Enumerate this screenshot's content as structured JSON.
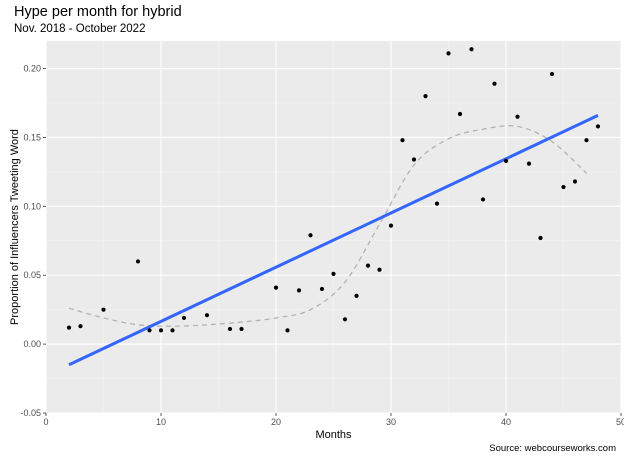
{
  "title": "Hype per month for hybrid",
  "subtitle": "Nov. 2018 - October 2022",
  "caption": "Source: webcourseworks.com",
  "chart_data": {
    "type": "scatter",
    "title": "Hype per month for hybrid",
    "subtitle": "Nov. 2018 - October 2022",
    "xlabel": "Months",
    "ylabel": "Proportion of Influencers Tweeting Word",
    "xlim": [
      0,
      50
    ],
    "ylim": [
      -0.05,
      0.22
    ],
    "x_ticks": [
      0,
      10,
      20,
      30,
      40,
      50
    ],
    "y_ticks": [
      -0.05,
      0.0,
      0.05,
      0.1,
      0.15,
      0.2
    ],
    "x_tick_labels": [
      "0",
      "10",
      "20",
      "30",
      "40",
      "50"
    ],
    "y_tick_labels": [
      "-0.05",
      "0.00",
      "0.05",
      "0.10",
      "0.15",
      "0.20"
    ],
    "grid": true,
    "legend": "none",
    "points": {
      "x": [
        2,
        3,
        5,
        8,
        9,
        10,
        11,
        12,
        14,
        16,
        17,
        20,
        21,
        22,
        23,
        24,
        25,
        26,
        27,
        28,
        29,
        30,
        31,
        32,
        33,
        34,
        35,
        36,
        37,
        38,
        39,
        40,
        41,
        42,
        43,
        44,
        45,
        46,
        47,
        48
      ],
      "y": [
        0.012,
        0.013,
        0.025,
        0.06,
        0.01,
        0.01,
        0.01,
        0.019,
        0.021,
        0.011,
        0.011,
        0.041,
        0.01,
        0.039,
        0.079,
        0.04,
        0.051,
        0.018,
        0.035,
        0.057,
        0.054,
        0.086,
        0.148,
        0.134,
        0.18,
        0.102,
        0.211,
        0.167,
        0.214,
        0.105,
        0.189,
        0.133,
        0.165,
        0.131,
        0.077,
        0.196,
        0.114,
        0.118,
        0.148,
        0.158
      ]
    },
    "linear_fit": {
      "x": [
        2,
        48
      ],
      "y": [
        -0.015,
        0.166
      ]
    },
    "smooth_fit": {
      "x": [
        2,
        5,
        8,
        11,
        14,
        17,
        20,
        23,
        26,
        29,
        32,
        35,
        38,
        41,
        44,
        47
      ],
      "y": [
        0.026,
        0.019,
        0.014,
        0.013,
        0.014,
        0.016,
        0.019,
        0.025,
        0.045,
        0.087,
        0.13,
        0.149,
        0.156,
        0.158,
        0.147,
        0.124
      ]
    },
    "colors": {
      "panel": "#ebebeb",
      "grid_major": "#ffffff",
      "grid_minor": "#f4f4f4",
      "points": "#000000",
      "linear_fit": "#3366ff",
      "smooth_fit": "#b3b3b3"
    }
  }
}
